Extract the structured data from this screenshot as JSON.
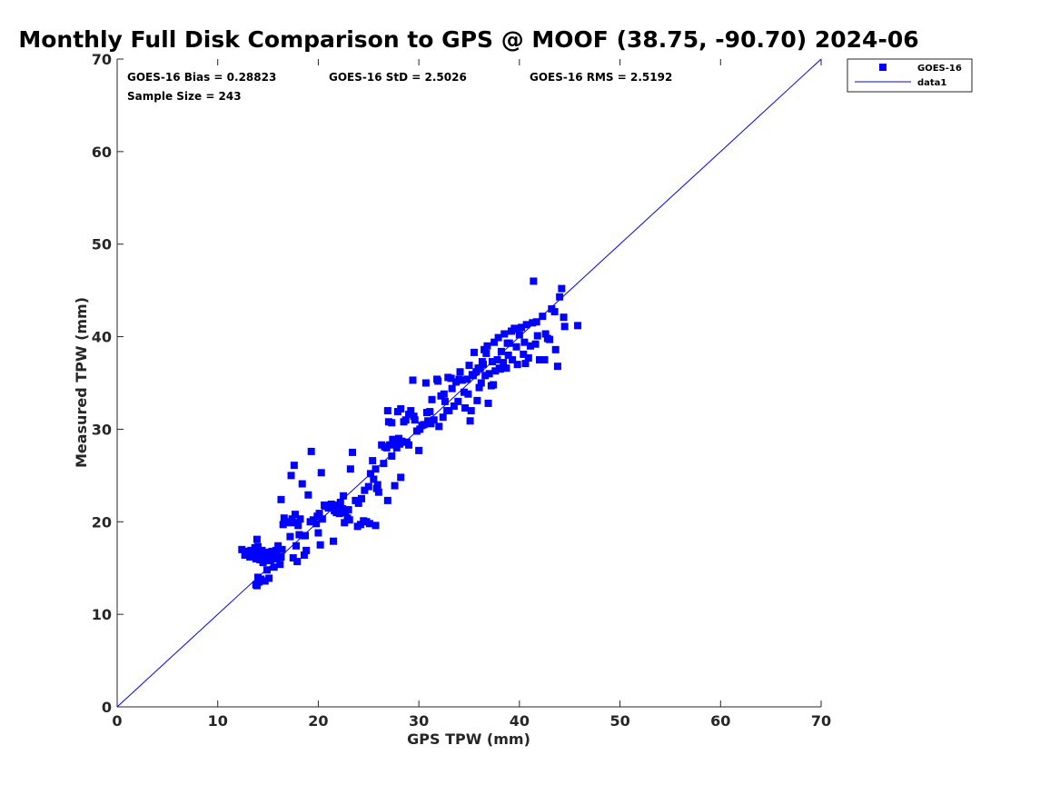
{
  "chart_data": {
    "type": "scatter",
    "title": "Monthly Full Disk Comparison to GPS @ MOOF (38.75, -90.70) 2024-06",
    "xlabel": "GPS TPW (mm)",
    "ylabel": "Measured TPW (mm)",
    "xlim": [
      0,
      70
    ],
    "ylim": [
      0,
      70
    ],
    "xticks": [
      0,
      10,
      20,
      30,
      40,
      50,
      60,
      70
    ],
    "yticks": [
      0,
      10,
      20,
      30,
      40,
      50,
      60,
      70
    ],
    "grid": false,
    "legend_position": "top-right",
    "stats": {
      "bias": "GOES-16 Bias = 0.28823",
      "std": "GOES-16 StD = 2.5026",
      "rms": "GOES-16 RMS = 2.5192",
      "sample": "Sample Size = 243"
    },
    "series": [
      {
        "name": "GOES-16",
        "kind": "scatter",
        "marker": "square",
        "color": "#0000ff",
        "points": [
          [
            12.4,
            17.0
          ],
          [
            12.7,
            16.4
          ],
          [
            13.0,
            16.8
          ],
          [
            13.2,
            16.2
          ],
          [
            13.5,
            16.5
          ],
          [
            13.7,
            17.2
          ],
          [
            13.8,
            16.0
          ],
          [
            13.9,
            18.1
          ],
          [
            14.0,
            17.3
          ],
          [
            14.1,
            16.6
          ],
          [
            14.2,
            15.9
          ],
          [
            14.4,
            16.9
          ],
          [
            14.6,
            16.1
          ],
          [
            14.8,
            16.7
          ],
          [
            15.0,
            16.3
          ],
          [
            15.2,
            15.8
          ],
          [
            15.5,
            16.4
          ],
          [
            15.8,
            16.9
          ],
          [
            16.0,
            17.4
          ],
          [
            16.3,
            16.2
          ],
          [
            14.0,
            14.0
          ],
          [
            14.3,
            13.8
          ],
          [
            13.8,
            13.2
          ],
          [
            14.1,
            13.5
          ],
          [
            14.7,
            13.6
          ],
          [
            15.1,
            13.9
          ],
          [
            14.9,
            14.8
          ],
          [
            15.6,
            15.1
          ],
          [
            16.2,
            15.4
          ],
          [
            13.9,
            13.1
          ],
          [
            16.5,
            19.7
          ],
          [
            16.6,
            20.4
          ],
          [
            16.9,
            20.0
          ],
          [
            17.2,
            18.4
          ],
          [
            17.5,
            19.9
          ],
          [
            17.7,
            20.8
          ],
          [
            17.8,
            17.4
          ],
          [
            18.0,
            19.6
          ],
          [
            18.2,
            20.3
          ],
          [
            18.5,
            18.5
          ],
          [
            16.3,
            22.4
          ],
          [
            17.3,
            25.0
          ],
          [
            17.6,
            26.1
          ],
          [
            18.4,
            24.1
          ],
          [
            19.0,
            22.9
          ],
          [
            19.3,
            27.6
          ],
          [
            19.5,
            20.2
          ],
          [
            19.8,
            19.8
          ],
          [
            20.1,
            20.9
          ],
          [
            20.3,
            25.3
          ],
          [
            17.5,
            16.1
          ],
          [
            17.9,
            15.7
          ],
          [
            18.6,
            16.4
          ],
          [
            18.8,
            16.9
          ],
          [
            20.0,
            18.8
          ],
          [
            20.2,
            17.5
          ],
          [
            21.5,
            17.9
          ],
          [
            20.4,
            20.3
          ],
          [
            20.7,
            21.7
          ],
          [
            21.0,
            21.5
          ],
          [
            21.3,
            21.9
          ],
          [
            21.6,
            21.2
          ],
          [
            21.8,
            21.0
          ],
          [
            22.0,
            21.8
          ],
          [
            22.2,
            22.1
          ],
          [
            22.4,
            21.4
          ],
          [
            22.5,
            22.8
          ],
          [
            22.7,
            21.0
          ],
          [
            22.9,
            20.4
          ],
          [
            23.1,
            20.2
          ],
          [
            22.6,
            19.9
          ],
          [
            23.2,
            25.7
          ],
          [
            23.4,
            27.5
          ],
          [
            23.9,
            19.5
          ],
          [
            24.2,
            19.7
          ],
          [
            24.5,
            20.1
          ],
          [
            24.8,
            20.0
          ],
          [
            25.1,
            19.8
          ],
          [
            25.7,
            19.6
          ],
          [
            24.0,
            22.0
          ],
          [
            24.3,
            22.5
          ],
          [
            25.0,
            23.8
          ],
          [
            25.4,
            26.6
          ],
          [
            25.5,
            24.6
          ],
          [
            25.7,
            25.7
          ],
          [
            25.8,
            23.6
          ],
          [
            26.0,
            23.2
          ],
          [
            26.3,
            28.3
          ],
          [
            26.5,
            26.3
          ],
          [
            26.8,
            28.0
          ],
          [
            27.0,
            30.8
          ],
          [
            27.1,
            28.3
          ],
          [
            27.3,
            27.1
          ],
          [
            27.5,
            28.5
          ],
          [
            27.6,
            23.9
          ],
          [
            27.8,
            28.0
          ],
          [
            27.9,
            31.9
          ],
          [
            28.0,
            29.0
          ],
          [
            28.2,
            32.2
          ],
          [
            28.3,
            28.7
          ],
          [
            28.5,
            30.8
          ],
          [
            28.7,
            31.0
          ],
          [
            29.0,
            31.6
          ],
          [
            29.2,
            32.0
          ],
          [
            29.4,
            35.3
          ],
          [
            29.6,
            31.0
          ],
          [
            29.8,
            29.8
          ],
          [
            30.0,
            27.7
          ],
          [
            30.3,
            30.4
          ],
          [
            30.7,
            35.0
          ],
          [
            26.9,
            32.0
          ],
          [
            27.3,
            30.7
          ],
          [
            28.2,
            24.8
          ],
          [
            26.9,
            22.3
          ],
          [
            27.7,
            28.8
          ],
          [
            29.0,
            28.3
          ],
          [
            30.5,
            30.5
          ],
          [
            30.9,
            30.9
          ],
          [
            31.1,
            31.9
          ],
          [
            31.3,
            33.2
          ],
          [
            31.5,
            31.0
          ],
          [
            31.8,
            35.4
          ],
          [
            32.0,
            30.3
          ],
          [
            32.2,
            33.6
          ],
          [
            32.4,
            31.3
          ],
          [
            32.6,
            33.0
          ],
          [
            32.9,
            35.6
          ],
          [
            33.0,
            32.0
          ],
          [
            33.3,
            34.4
          ],
          [
            33.5,
            32.5
          ],
          [
            33.7,
            35.1
          ],
          [
            33.9,
            33.0
          ],
          [
            34.1,
            36.2
          ],
          [
            34.3,
            35.3
          ],
          [
            34.5,
            34.0
          ],
          [
            34.6,
            32.3
          ],
          [
            34.8,
            35.4
          ],
          [
            35.0,
            36.9
          ],
          [
            35.1,
            30.9
          ],
          [
            35.2,
            32.0
          ],
          [
            35.4,
            35.8
          ],
          [
            35.5,
            38.3
          ],
          [
            35.7,
            36.2
          ],
          [
            35.8,
            33.1
          ],
          [
            36.0,
            34.5
          ],
          [
            36.1,
            36.6
          ],
          [
            36.2,
            35.0
          ],
          [
            36.3,
            37.3
          ],
          [
            36.5,
            38.6
          ],
          [
            36.6,
            35.8
          ],
          [
            36.8,
            39.0
          ],
          [
            36.9,
            32.8
          ],
          [
            37.0,
            36.0
          ],
          [
            37.2,
            34.7
          ],
          [
            37.3,
            37.3
          ],
          [
            37.5,
            39.4
          ],
          [
            37.6,
            36.3
          ],
          [
            37.8,
            37.5
          ],
          [
            37.9,
            39.9
          ],
          [
            38.1,
            36.5
          ],
          [
            38.2,
            38.4
          ],
          [
            38.4,
            37.2
          ],
          [
            38.5,
            40.3
          ],
          [
            38.7,
            36.6
          ],
          [
            38.9,
            38.0
          ],
          [
            39.0,
            39.3
          ],
          [
            39.2,
            40.6
          ],
          [
            39.3,
            37.5
          ],
          [
            39.5,
            40.9
          ],
          [
            39.7,
            38.9
          ],
          [
            39.8,
            37.0
          ],
          [
            40.0,
            40.2
          ],
          [
            40.2,
            41.0
          ],
          [
            40.4,
            38.1
          ],
          [
            40.5,
            39.4
          ],
          [
            40.7,
            41.3
          ],
          [
            40.9,
            37.7
          ],
          [
            41.1,
            39.0
          ],
          [
            41.3,
            41.5
          ],
          [
            41.4,
            46.0
          ],
          [
            41.6,
            39.2
          ],
          [
            41.8,
            40.1
          ],
          [
            42.0,
            37.5
          ],
          [
            42.3,
            42.2
          ],
          [
            42.6,
            40.3
          ],
          [
            42.8,
            39.8
          ],
          [
            43.0,
            39.7
          ],
          [
            43.2,
            43.0
          ],
          [
            43.5,
            42.7
          ],
          [
            43.6,
            38.6
          ],
          [
            43.8,
            36.8
          ],
          [
            44.0,
            44.3
          ],
          [
            44.2,
            45.2
          ],
          [
            44.4,
            42.1
          ],
          [
            44.5,
            41.1
          ],
          [
            45.8,
            41.2
          ],
          [
            42.5,
            37.5
          ],
          [
            41.7,
            41.6
          ],
          [
            40.6,
            37.1
          ],
          [
            39.6,
            40.8
          ],
          [
            38.8,
            39.3
          ],
          [
            38.0,
            36.6
          ],
          [
            37.4,
            34.8
          ],
          [
            36.7,
            38.2
          ],
          [
            36.4,
            37.0
          ],
          [
            35.9,
            36.6
          ],
          [
            35.3,
            35.9
          ],
          [
            34.9,
            33.8
          ],
          [
            34.0,
            35.4
          ],
          [
            33.2,
            35.5
          ],
          [
            32.8,
            32.0
          ],
          [
            32.5,
            33.8
          ],
          [
            31.9,
            35.2
          ],
          [
            31.2,
            30.6
          ],
          [
            30.8,
            31.8
          ],
          [
            30.1,
            30.0
          ],
          [
            29.5,
            31.4
          ],
          [
            28.8,
            28.6
          ],
          [
            28.1,
            28.4
          ],
          [
            27.4,
            28.9
          ],
          [
            26.6,
            28.1
          ],
          [
            25.9,
            24.0
          ],
          [
            25.2,
            25.2
          ],
          [
            24.6,
            23.4
          ],
          [
            23.7,
            22.3
          ],
          [
            23.0,
            21.3
          ],
          [
            22.1,
            20.9
          ],
          [
            21.4,
            21.6
          ],
          [
            20.6,
            21.8
          ],
          [
            19.9,
            20.6
          ],
          [
            19.2,
            20.0
          ],
          [
            18.7,
            18.5
          ],
          [
            18.1,
            18.6
          ],
          [
            17.4,
            20.3
          ],
          [
            16.8,
            19.9
          ],
          [
            16.4,
            17.0
          ],
          [
            15.9,
            16.0
          ],
          [
            15.4,
            16.8
          ],
          [
            15.7,
            16.5
          ],
          [
            14.5,
            15.6
          ],
          [
            13.6,
            16.3
          ],
          [
            13.3,
            16.9
          ],
          [
            14.2,
            16.4
          ]
        ]
      },
      {
        "name": "data1",
        "kind": "line",
        "color": "#0000ff",
        "points": [
          [
            0,
            0
          ],
          [
            70,
            70
          ]
        ]
      }
    ]
  }
}
